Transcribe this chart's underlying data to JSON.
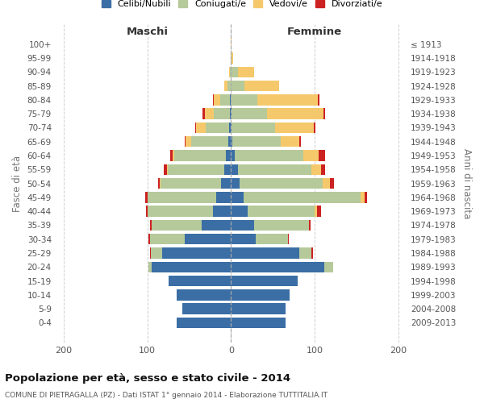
{
  "age_groups": [
    "0-4",
    "5-9",
    "10-14",
    "15-19",
    "20-24",
    "25-29",
    "30-34",
    "35-39",
    "40-44",
    "45-49",
    "50-54",
    "55-59",
    "60-64",
    "65-69",
    "70-74",
    "75-79",
    "80-84",
    "85-89",
    "90-94",
    "95-99",
    "100+"
  ],
  "birth_years": [
    "2009-2013",
    "2004-2008",
    "1999-2003",
    "1994-1998",
    "1989-1993",
    "1984-1988",
    "1979-1983",
    "1974-1978",
    "1969-1973",
    "1964-1968",
    "1959-1963",
    "1954-1958",
    "1949-1953",
    "1944-1948",
    "1939-1943",
    "1934-1938",
    "1929-1933",
    "1924-1928",
    "1919-1923",
    "1914-1918",
    "≤ 1913"
  ],
  "colors": {
    "celibi": "#3a6ea5",
    "coniugati": "#b5c99a",
    "vedovi": "#f5c96b",
    "divorziati": "#cc2222"
  },
  "maschi": {
    "celibi": [
      65,
      58,
      65,
      75,
      95,
      82,
      55,
      35,
      22,
      18,
      12,
      8,
      6,
      3,
      2,
      1,
      1,
      0,
      0,
      0,
      0
    ],
    "coniugati": [
      0,
      0,
      0,
      0,
      4,
      14,
      42,
      60,
      78,
      82,
      72,
      68,
      62,
      45,
      28,
      20,
      12,
      4,
      1,
      0,
      0
    ],
    "vedovi": [
      0,
      0,
      0,
      0,
      0,
      0,
      0,
      0,
      0,
      0,
      1,
      1,
      2,
      6,
      12,
      10,
      8,
      4,
      1,
      0,
      0
    ],
    "divorziati": [
      0,
      0,
      0,
      0,
      0,
      1,
      2,
      2,
      2,
      3,
      2,
      3,
      3,
      1,
      1,
      3,
      1,
      0,
      0,
      0,
      0
    ]
  },
  "femmine": {
    "celibi": [
      65,
      65,
      70,
      80,
      112,
      82,
      30,
      28,
      20,
      15,
      10,
      8,
      5,
      2,
      1,
      1,
      0,
      0,
      0,
      0,
      0
    ],
    "coniugati": [
      0,
      0,
      0,
      0,
      10,
      14,
      38,
      65,
      80,
      140,
      100,
      88,
      82,
      58,
      52,
      42,
      32,
      16,
      8,
      1,
      0
    ],
    "vedovi": [
      0,
      0,
      0,
      0,
      0,
      0,
      0,
      0,
      3,
      5,
      8,
      12,
      18,
      22,
      46,
      68,
      72,
      42,
      20,
      2,
      1
    ],
    "divorziati": [
      0,
      0,
      0,
      0,
      0,
      2,
      1,
      2,
      5,
      3,
      5,
      5,
      8,
      2,
      2,
      2,
      2,
      0,
      0,
      0,
      0
    ]
  },
  "xlim": 210,
  "xticks": [
    -200,
    -100,
    0,
    100,
    200
  ],
  "xticklabels": [
    "200",
    "100",
    "0",
    "100",
    "200"
  ],
  "title": "Popolazione per età, sesso e stato civile - 2014",
  "subtitle": "COMUNE DI PIETRAGALLA (PZ) - Dati ISTAT 1° gennaio 2014 - Elaborazione TUTTITALIA.IT",
  "ylabel": "Fasce di età",
  "ylabel_right": "Anni di nascita",
  "legend_labels": [
    "Celibi/Nubili",
    "Coniugati/e",
    "Vedovi/e",
    "Divorziati/e"
  ],
  "maschi_label": "Maschi",
  "femmine_label": "Femmine",
  "background": "#ffffff",
  "grid_color": "#c8c8c8"
}
